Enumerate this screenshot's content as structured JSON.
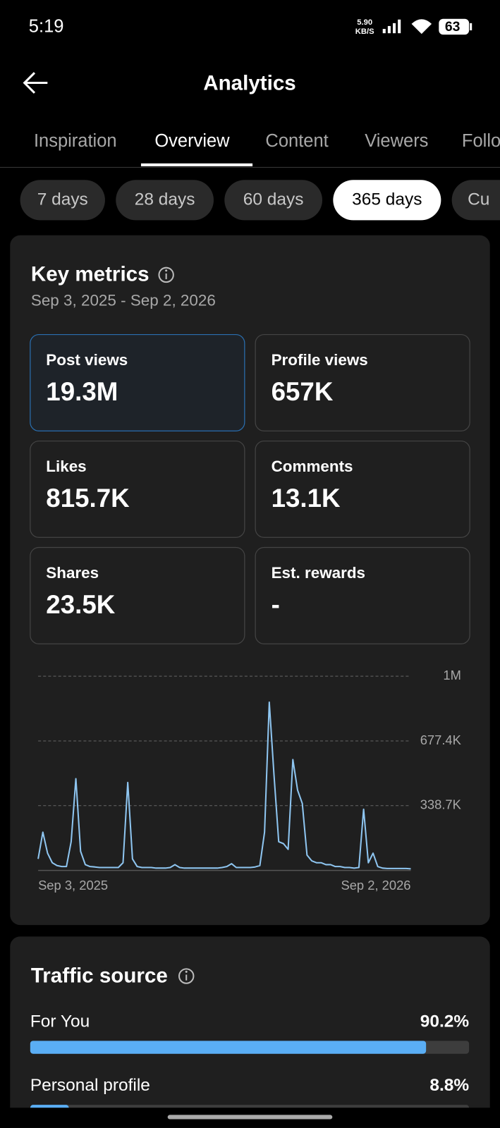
{
  "status_bar": {
    "time": "5:19",
    "net_speed": [
      "5.90",
      "KB/S"
    ],
    "battery": "63"
  },
  "header": {
    "title": "Analytics"
  },
  "tabs": [
    "Inspiration",
    "Overview",
    "Content",
    "Viewers",
    "Follo"
  ],
  "ranges": [
    "7 days",
    "28 days",
    "60 days",
    "365 days",
    "Cu"
  ],
  "key_metrics": {
    "title": "Key metrics",
    "date_range": "Sep 3, 2025 - Sep 2, 2026",
    "cards": [
      {
        "label": "Post views",
        "value": "19.3M"
      },
      {
        "label": "Profile views",
        "value": "657K"
      },
      {
        "label": "Likes",
        "value": "815.7K"
      },
      {
        "label": "Comments",
        "value": "13.1K"
      },
      {
        "label": "Shares",
        "value": "23.5K"
      },
      {
        "label": "Est. rewards",
        "value": "-"
      }
    ]
  },
  "chart_data": {
    "type": "line",
    "categories": [
      "Sep 3, 2025",
      null,
      null,
      null,
      null,
      null,
      null,
      null,
      null,
      null,
      null,
      null,
      null,
      null,
      null,
      null,
      null,
      null,
      null,
      null,
      null,
      null,
      null,
      null,
      null,
      null,
      null,
      null,
      null,
      null,
      null,
      null,
      null,
      null,
      null,
      null,
      null,
      null,
      null,
      null,
      null,
      null,
      null,
      null,
      null,
      null,
      null,
      null,
      null,
      null,
      null,
      null,
      null,
      null,
      null,
      null,
      null,
      null,
      null,
      null,
      null,
      null,
      null,
      null,
      null,
      null,
      null,
      null,
      null,
      null,
      null,
      null,
      null,
      null,
      null,
      null,
      null,
      null,
      null,
      "Sep 2, 2026"
    ],
    "series": [
      {
        "name": "Post views",
        "color": "#8ec5f0",
        "values": [
          60000,
          200000,
          90000,
          40000,
          25000,
          20000,
          20000,
          150000,
          480000,
          100000,
          30000,
          20000,
          18000,
          15000,
          15000,
          15000,
          15000,
          15000,
          40000,
          460000,
          60000,
          20000,
          15000,
          15000,
          15000,
          12000,
          12000,
          12000,
          15000,
          30000,
          15000,
          12000,
          12000,
          12000,
          12000,
          12000,
          12000,
          12000,
          12000,
          15000,
          20000,
          35000,
          15000,
          15000,
          15000,
          15000,
          18000,
          25000,
          200000,
          880000,
          500000,
          150000,
          140000,
          110000,
          580000,
          420000,
          350000,
          80000,
          50000,
          40000,
          40000,
          30000,
          30000,
          20000,
          20000,
          15000,
          15000,
          12000,
          15000,
          320000,
          40000,
          90000,
          20000,
          12000,
          10000,
          10000,
          10000,
          10000,
          10000,
          8000
        ]
      }
    ],
    "ylim": [
      0,
      1016100
    ],
    "yticks": [
      {
        "value": 338700,
        "label": "338.7K"
      },
      {
        "value": 677400,
        "label": "677.4K"
      },
      {
        "value": 1016100,
        "label": "1M"
      }
    ],
    "grid": true
  },
  "traffic_source": {
    "title": "Traffic source",
    "categories": [
      "For You",
      "Personal profile"
    ],
    "values": [
      90.2,
      8.8
    ],
    "value_labels": [
      "90.2%",
      "8.8%"
    ]
  }
}
